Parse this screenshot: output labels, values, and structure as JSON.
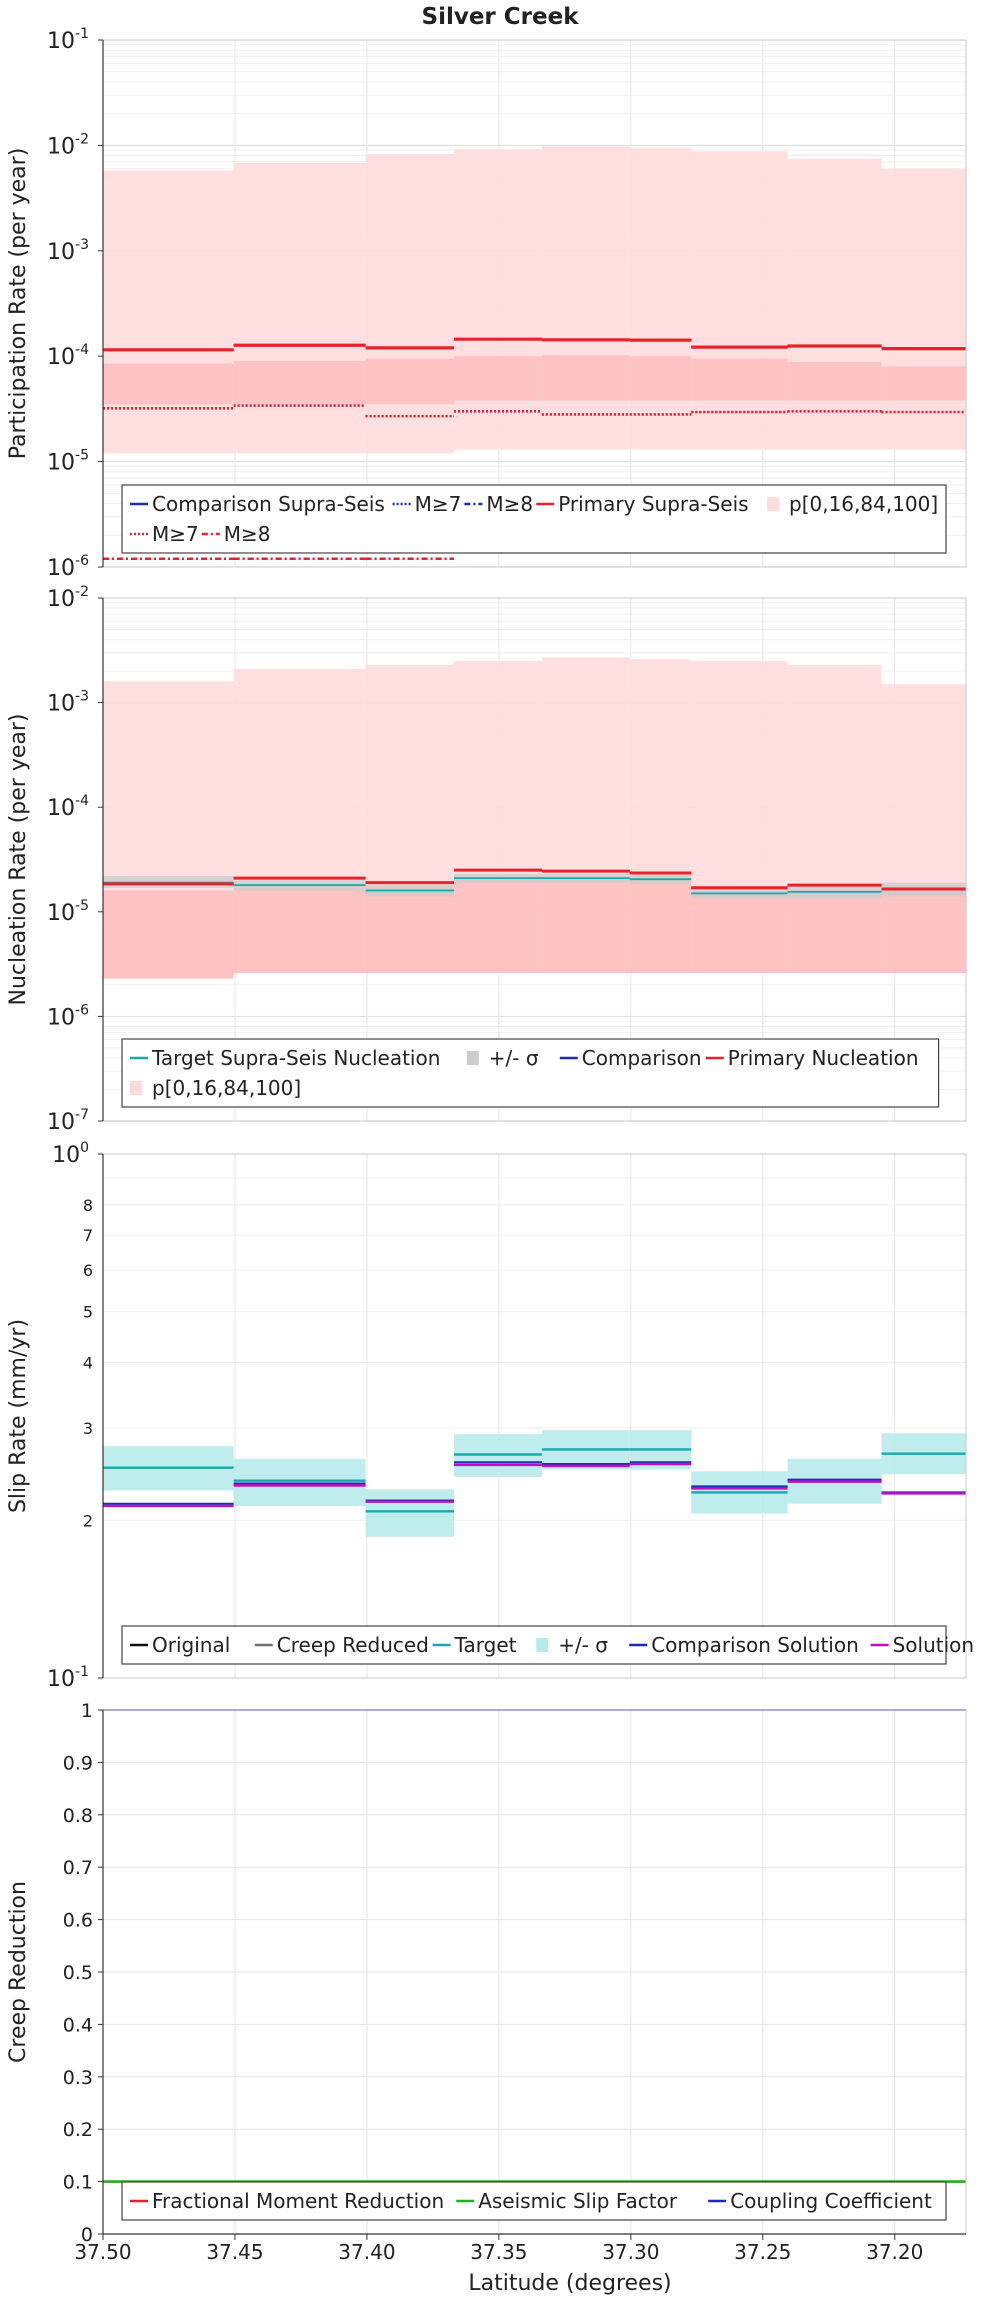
{
  "title": "Silver Creek",
  "xlabel": "Latitude (degrees)",
  "x_ticks": [
    37.5,
    37.45,
    37.4,
    37.35,
    37.3,
    37.25,
    37.2
  ],
  "x_tick_labels": [
    "37.50",
    "37.45",
    "37.40",
    "37.35",
    "37.30",
    "37.25",
    "37.20"
  ],
  "x_range": [
    37.5,
    37.173
  ],
  "colors": {
    "primary": "#e8212b",
    "comparison": "#1f2bb4",
    "target": "#17a9a9",
    "sigma_band": "#b8eaea",
    "creep_reduced": "#707070",
    "solution": "#c010c0",
    "aseismic": "#20b020",
    "coupling": "#1f2bb4",
    "fill_outer": "#ffdcdc",
    "fill_inner": "#ffbcbc",
    "grid": "#e6e6e6"
  },
  "chart_data": [
    {
      "type": "line",
      "ylabel": "Participation Rate (per year)",
      "yscale": "log",
      "ylim": [
        1e-06,
        0.1
      ],
      "y_ticks": [
        {
          "base": "10",
          "exp": "-6",
          "value": 1e-06
        },
        {
          "base": "10",
          "exp": "-5",
          "value": 1e-05
        },
        {
          "base": "10",
          "exp": "-4",
          "value": 0.0001
        },
        {
          "base": "10",
          "exp": "-3",
          "value": 0.001
        },
        {
          "base": "10",
          "exp": "-2",
          "value": 0.01
        },
        {
          "base": "10",
          "exp": "-1",
          "value": 0.1
        }
      ],
      "edges": [
        37.5,
        37.4505,
        37.4005,
        37.367,
        37.3337,
        37.3004,
        37.2771,
        37.2406,
        37.205,
        37.173
      ],
      "bands": [
        {
          "name": "p[0,16,84,100]",
          "color": "#ffdcdc",
          "low": [
            1.2e-05,
            1.2e-05,
            1.2e-05,
            1.3e-05,
            1.3e-05,
            1.3e-05,
            1.3e-05,
            1.3e-05,
            1.3e-05
          ],
          "high": [
            0.0058,
            0.0068,
            0.0083,
            0.0092,
            0.0098,
            0.0095,
            0.0088,
            0.0075,
            0.006
          ]
        },
        {
          "name": "",
          "color": "#ffbcbc",
          "low": [
            3.5e-05,
            3.5e-05,
            3.5e-05,
            3.8e-05,
            3.8e-05,
            3.8e-05,
            3.8e-05,
            3.8e-05,
            3.8e-05
          ],
          "high": [
            8.5e-05,
            9e-05,
            9.5e-05,
            0.0001,
            0.000102,
            0.0001,
            9.5e-05,
            8.8e-05,
            8e-05
          ]
        }
      ],
      "series": [
        {
          "name": "Comparison Supra-Seis",
          "color": "#1f2bb4",
          "dash": "",
          "width": 2.2,
          "values": [
            0.000115,
            0.000127,
            0.00012,
            0.000145,
            0.000143,
            0.000142,
            0.000122,
            0.000125,
            0.000118
          ]
        },
        {
          "name": "Primary Supra-Seis",
          "color": "#e8212b",
          "dash": "",
          "width": 3.2,
          "values": [
            0.000115,
            0.000127,
            0.00012,
            0.000145,
            0.000143,
            0.000142,
            0.000122,
            0.000125,
            0.000118
          ]
        },
        {
          "name": "M≥7",
          "color": "#1f2bb4",
          "dash": "2,2",
          "width": 1.8,
          "values": [
            3.2e-05,
            3.4e-05,
            2.7e-05,
            3e-05,
            2.8e-05,
            2.8e-05,
            2.95e-05,
            3e-05,
            2.95e-05
          ]
        },
        {
          "name": "M≥7",
          "color": "#e8212b",
          "dash": "2,2",
          "width": 2.6,
          "values": [
            3.2e-05,
            3.4e-05,
            2.7e-05,
            3e-05,
            2.8e-05,
            2.8e-05,
            2.95e-05,
            3e-05,
            2.95e-05
          ]
        },
        {
          "name": "M≥8",
          "color": "#1f2bb4",
          "dash": "6,3,2,3",
          "width": 2.4,
          "values": [
            1.2e-06,
            1.2e-06,
            1.2e-06,
            null,
            null,
            null,
            null,
            null,
            null
          ]
        },
        {
          "name": "M≥8",
          "color": "#e8212b",
          "dash": "6,3,2,3",
          "width": 2.4,
          "values": [
            1.2e-06,
            1.2e-06,
            1.2e-06,
            null,
            null,
            null,
            null,
            null,
            null
          ]
        }
      ],
      "legend": {
        "placement": "bottom",
        "rows": [
          [
            {
              "label": "Comparison Supra-Seis",
              "color": "#1f2bb4",
              "dash": "",
              "kind": "line"
            },
            {
              "label": "M≥7",
              "color": "#1f2bb4",
              "dash": "2,2",
              "kind": "line"
            },
            {
              "label": "M≥8",
              "color": "#1f2bb4",
              "dash": "6,3,2,3",
              "kind": "line"
            },
            {
              "label": "Primary Supra-Seis",
              "color": "#e8212b",
              "dash": "",
              "kind": "line"
            },
            {
              "label": "p[0,16,84,100]",
              "color": "#ffdcdc",
              "dash": "",
              "kind": "patch"
            }
          ],
          [
            {
              "label": "M≥7",
              "color": "#e8212b",
              "dash": "2,2",
              "kind": "line"
            },
            {
              "label": "M≥8",
              "color": "#e8212b",
              "dash": "6,3,2,3",
              "kind": "line"
            }
          ]
        ]
      }
    },
    {
      "type": "line",
      "ylabel": "Nucleation Rate (per year)",
      "yscale": "log",
      "ylim": [
        1e-07,
        0.01
      ],
      "y_ticks": [
        {
          "base": "10",
          "exp": "-7",
          "value": 1e-07
        },
        {
          "base": "10",
          "exp": "-6",
          "value": 1e-06
        },
        {
          "base": "10",
          "exp": "-5",
          "value": 1e-05
        },
        {
          "base": "10",
          "exp": "-4",
          "value": 0.0001
        },
        {
          "base": "10",
          "exp": "-3",
          "value": 0.001
        },
        {
          "base": "10",
          "exp": "-2",
          "value": 0.01
        }
      ],
      "edges": [
        37.5,
        37.4505,
        37.4005,
        37.367,
        37.3337,
        37.3004,
        37.2771,
        37.2406,
        37.205,
        37.173
      ],
      "bands": [
        {
          "name": "p[0,16,84,100]",
          "color": "#ffdcdc",
          "low": [
            2.3e-06,
            2.6e-06,
            2.6e-06,
            2.6e-06,
            2.6e-06,
            2.6e-06,
            2.6e-06,
            2.6e-06,
            2.6e-06
          ],
          "high": [
            0.0016,
            0.0021,
            0.0023,
            0.0025,
            0.0027,
            0.0026,
            0.0025,
            0.0023,
            0.0015
          ]
        },
        {
          "name": "",
          "color": "#ffbcbc",
          "low": [
            2.3e-06,
            2.6e-06,
            2.6e-06,
            2.6e-06,
            2.6e-06,
            2.6e-06,
            2.6e-06,
            2.6e-06,
            2.6e-06
          ],
          "high": [
            1.6e-05,
            1.7e-05,
            1.6e-05,
            2.1e-05,
            2.1e-05,
            2e-05,
            1.5e-05,
            1.6e-05,
            1.6e-05
          ]
        },
        {
          "name": "+/- σ",
          "color": "#cccccc",
          "low": [
            1.7e-05,
            1.6e-05,
            1.4e-05,
            1.9e-05,
            1.9e-05,
            1.85e-05,
            1.35e-05,
            1.35e-05,
            1.4e-05
          ],
          "high": [
            2.2e-05,
            2e-05,
            1.8e-05,
            2.3e-05,
            2.3e-05,
            2.25e-05,
            1.7e-05,
            1.8e-05,
            1.9e-05
          ]
        }
      ],
      "series": [
        {
          "name": "Target Supra-Seis Nucleation",
          "color": "#17a9a9",
          "dash": "",
          "width": 1.8,
          "values": [
            1.9e-05,
            1.8e-05,
            1.6e-05,
            2.1e-05,
            2.1e-05,
            2.05e-05,
            1.5e-05,
            1.55e-05,
            1.65e-05
          ]
        },
        {
          "name": "Comparison",
          "color": "#1f2bb4",
          "dash": "",
          "width": 2.2,
          "values": [
            1.85e-05,
            2.1e-05,
            1.9e-05,
            2.5e-05,
            2.45e-05,
            2.35e-05,
            1.7e-05,
            1.8e-05,
            1.65e-05
          ]
        },
        {
          "name": "Primary Nucleation",
          "color": "#e8212b",
          "dash": "",
          "width": 3.0,
          "values": [
            1.85e-05,
            2.1e-05,
            1.9e-05,
            2.5e-05,
            2.45e-05,
            2.35e-05,
            1.7e-05,
            1.8e-05,
            1.65e-05
          ]
        }
      ],
      "legend": {
        "placement": "bottom",
        "rows": [
          [
            {
              "label": "Target Supra-Seis Nucleation",
              "color": "#17a9a9",
              "dash": "",
              "kind": "line"
            },
            {
              "label": "+/- σ",
              "color": "#cccccc",
              "dash": "",
              "kind": "patch"
            },
            {
              "label": "Comparison",
              "color": "#1f2bb4",
              "dash": "",
              "kind": "line"
            },
            {
              "label": "Primary Nucleation",
              "color": "#e8212b",
              "dash": "",
              "kind": "line"
            }
          ],
          [
            {
              "label": "p[0,16,84,100]",
              "color": "#ffdcdc",
              "dash": "",
              "kind": "patch"
            }
          ]
        ]
      }
    },
    {
      "type": "line",
      "ylabel": "Slip Rate (mm/yr)",
      "yscale": "log",
      "ylim": [
        0.1,
        1
      ],
      "y_ticks": [
        {
          "base": "10",
          "exp": "-1",
          "value": 0.1
        },
        {
          "base": "10",
          "exp": "0",
          "value": 1
        }
      ],
      "y_minor_ticks": [
        {
          "label": "2",
          "value": 0.2
        },
        {
          "label": "3",
          "value": 0.3
        },
        {
          "label": "4",
          "value": 0.4
        },
        {
          "label": "5",
          "value": 0.5
        },
        {
          "label": "6",
          "value": 0.6
        },
        {
          "label": "7",
          "value": 0.7
        },
        {
          "label": "8",
          "value": 0.8
        }
      ],
      "edges": [
        37.5,
        37.4505,
        37.4005,
        37.367,
        37.3337,
        37.3004,
        37.2771,
        37.2406,
        37.205,
        37.173
      ],
      "bands": [
        {
          "name": "+/- σ",
          "color": "#b8eaea",
          "low": [
            0.228,
            0.213,
            0.186,
            0.242,
            0.25,
            0.25,
            0.206,
            0.215,
            0.245
          ],
          "high": [
            0.277,
            0.262,
            0.229,
            0.292,
            0.297,
            0.297,
            0.248,
            0.262,
            0.293
          ]
        },
        {
          "name": "",
          "color": "#b8eaea",
          "low": [
            null,
            null,
            null,
            null,
            null,
            null,
            null,
            null,
            null
          ],
          "high": [
            null,
            null,
            null,
            null,
            null,
            null,
            null,
            null,
            null
          ]
        }
      ],
      "series": [
        {
          "name": "Original",
          "color": "#111111",
          "dash": "",
          "width": 1.4,
          "values": [
            null,
            null,
            null,
            null,
            null,
            null,
            null,
            null,
            null
          ]
        },
        {
          "name": "Creep Reduced",
          "color": "#707070",
          "dash": "",
          "width": 1.4,
          "values": [
            null,
            null,
            null,
            null,
            null,
            null,
            null,
            null,
            null
          ]
        },
        {
          "name": "Target",
          "color": "#17a9a9",
          "dash": "",
          "width": 2.4,
          "values": [
            0.252,
            0.238,
            0.208,
            0.267,
            0.273,
            0.273,
            0.226,
            0.238,
            0.268
          ]
        },
        {
          "name": "Comparison Solution",
          "color": "#1f2bb4",
          "dash": "",
          "width": 2.2,
          "values": [
            0.215,
            0.235,
            0.218,
            0.258,
            0.256,
            0.258,
            0.232,
            0.239,
            0.226
          ]
        },
        {
          "name": "Solution",
          "color": "#c010c0",
          "dash": "",
          "width": 2.4,
          "values": [
            0.213,
            0.233,
            0.217,
            0.255,
            0.254,
            0.256,
            0.23,
            0.237,
            0.225
          ]
        }
      ],
      "legend": {
        "placement": "bottom-left",
        "rows": [
          [
            {
              "label": "Original",
              "color": "#111111",
              "dash": "",
              "kind": "line"
            },
            {
              "label": "Creep Reduced",
              "color": "#707070",
              "dash": "",
              "kind": "line"
            },
            {
              "label": "Target",
              "color": "#17a9a9",
              "dash": "",
              "kind": "line"
            },
            {
              "label": "+/- σ",
              "color": "#b8eaea",
              "dash": "",
              "kind": "patch"
            },
            {
              "label": "Comparison Solution",
              "color": "#1f2bb4",
              "dash": "",
              "kind": "line"
            },
            {
              "label": "Solution",
              "color": "#c010c0",
              "dash": "",
              "kind": "line"
            }
          ]
        ]
      }
    },
    {
      "type": "line",
      "ylabel": "Creep Reduction",
      "yscale": "linear",
      "ylim": [
        0,
        1
      ],
      "y_ticks": [
        {
          "label": "0",
          "value": 0
        },
        {
          "label": "0.1",
          "value": 0.1
        },
        {
          "label": "0.2",
          "value": 0.2
        },
        {
          "label": "0.3",
          "value": 0.3
        },
        {
          "label": "0.4",
          "value": 0.4
        },
        {
          "label": "0.5",
          "value": 0.5
        },
        {
          "label": "0.6",
          "value": 0.6
        },
        {
          "label": "0.7",
          "value": 0.7
        },
        {
          "label": "0.8",
          "value": 0.8
        },
        {
          "label": "0.9",
          "value": 0.9
        },
        {
          "label": "1",
          "value": 1
        }
      ],
      "edges": [
        37.5,
        37.173
      ],
      "bands": [],
      "series": [
        {
          "name": "Fractional Moment Reduction",
          "color": "#e8212b",
          "dash": "",
          "width": 2.0,
          "values": [
            0.1
          ]
        },
        {
          "name": "Aseismic Slip Factor",
          "color": "#20b020",
          "dash": "",
          "width": 2.6,
          "values": [
            0.1
          ]
        },
        {
          "name": "Coupling Coefficient",
          "color": "#1f2bb4",
          "dash": "",
          "width": 1.6,
          "values": [
            1
          ]
        }
      ],
      "legend": {
        "placement": "bottom-left",
        "rows": [
          [
            {
              "label": "Fractional Moment Reduction",
              "color": "#e8212b",
              "dash": "",
              "kind": "line"
            },
            {
              "label": "Aseismic Slip Factor",
              "color": "#20b020",
              "dash": "",
              "kind": "line"
            },
            {
              "label": "Coupling Coefficient",
              "color": "#1f2bb4",
              "dash": "",
              "kind": "line"
            }
          ]
        ]
      }
    }
  ]
}
